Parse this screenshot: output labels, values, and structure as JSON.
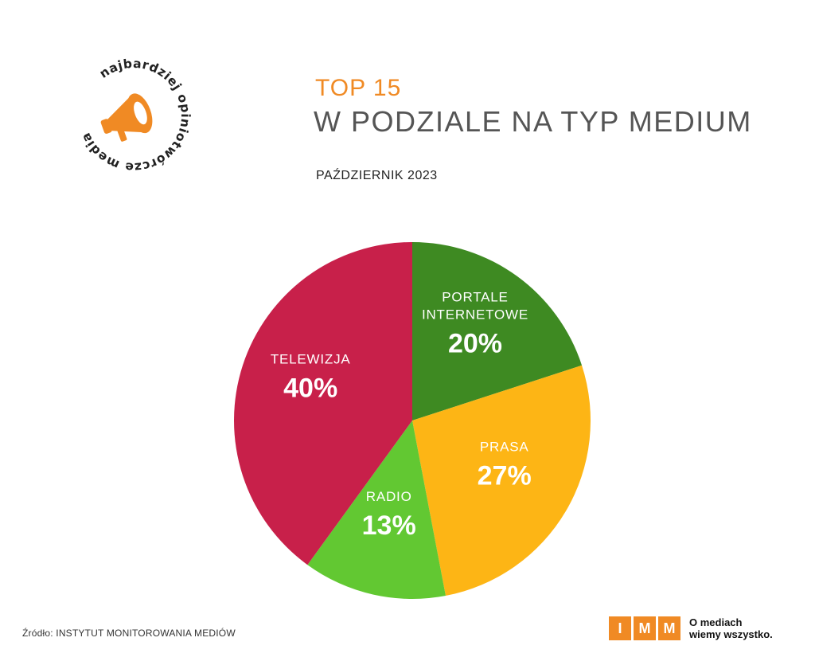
{
  "badge": {
    "text": "najbardziej opiniotwórcze media"
  },
  "header": {
    "title_top": "TOP 15",
    "title_main": "W PODZIALE NA TYP MEDIUM",
    "subtitle": "PAŹDZIERNIK 2023"
  },
  "chart_data": {
    "type": "pie",
    "title": "TOP 15 W PODZIALE NA TYP MEDIUM",
    "subtitle": "PAŹDZIERNIK 2023",
    "slices": [
      {
        "label": [
          "PORTALE",
          "INTERNETOWE"
        ],
        "value": 20,
        "value_label": "20%",
        "color": "#3e8a22"
      },
      {
        "label": [
          "PRASA"
        ],
        "value": 27,
        "value_label": "27%",
        "color": "#fdb515"
      },
      {
        "label": [
          "RADIO"
        ],
        "value": 13,
        "value_label": "13%",
        "color": "#62c832"
      },
      {
        "label": [
          "TELEWIZJA"
        ],
        "value": 40,
        "value_label": "40%",
        "color": "#c8204a"
      }
    ],
    "start": "12 o'clock",
    "direction": "clockwise",
    "legend": "none (labels on slices)"
  },
  "footer": {
    "source": "Źródło: INSTYTUT MONITOROWANIA MEDIÓW",
    "logo_letters": [
      "I",
      "M",
      "M"
    ],
    "tagline_1": "O mediach",
    "tagline_2": "wiemy wszystko."
  },
  "colors": {
    "accent": "#f08a24",
    "title_grey": "#555555"
  }
}
